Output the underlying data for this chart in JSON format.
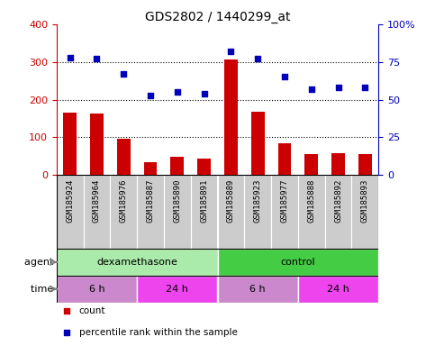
{
  "title": "GDS2802 / 1440299_at",
  "samples": [
    "GSM185924",
    "GSM185964",
    "GSM185976",
    "GSM185887",
    "GSM185890",
    "GSM185891",
    "GSM185889",
    "GSM185923",
    "GSM185977",
    "GSM185888",
    "GSM185892",
    "GSM185893"
  ],
  "counts": [
    165,
    163,
    97,
    35,
    48,
    43,
    307,
    168,
    83,
    55,
    58,
    55
  ],
  "percentiles": [
    78,
    77,
    67,
    53,
    55,
    54,
    82,
    77,
    65,
    57,
    58,
    58
  ],
  "ylim_left": [
    0,
    400
  ],
  "ylim_right": [
    0,
    100
  ],
  "yticks_left": [
    0,
    100,
    200,
    300,
    400
  ],
  "yticks_right": [
    0,
    25,
    50,
    75,
    100
  ],
  "yticklabels_right": [
    "0",
    "25",
    "50",
    "75",
    "100%"
  ],
  "bar_color": "#cc0000",
  "dot_color": "#0000bb",
  "agent_groups": [
    {
      "label": "dexamethasone",
      "start": 0,
      "end": 6,
      "color": "#aaeaaa"
    },
    {
      "label": "control",
      "start": 6,
      "end": 12,
      "color": "#44cc44"
    }
  ],
  "time_groups": [
    {
      "label": "6 h",
      "start": 0,
      "end": 3,
      "color": "#cc88cc"
    },
    {
      "label": "24 h",
      "start": 3,
      "end": 6,
      "color": "#ee44ee"
    },
    {
      "label": "6 h",
      "start": 6,
      "end": 9,
      "color": "#cc88cc"
    },
    {
      "label": "24 h",
      "start": 9,
      "end": 12,
      "color": "#ee44ee"
    }
  ],
  "legend_items": [
    {
      "label": "count",
      "color": "#cc0000",
      "marker": "s"
    },
    {
      "label": "percentile rank within the sample",
      "color": "#0000bb",
      "marker": "s"
    }
  ],
  "agent_label": "agent",
  "time_label": "time",
  "left_tick_color": "#cc0000",
  "right_tick_color": "#0000bb",
  "background_color": "#ffffff",
  "sample_label_bg": "#cccccc",
  "sample_label_fontsize": 6.5,
  "bar_width": 0.5
}
